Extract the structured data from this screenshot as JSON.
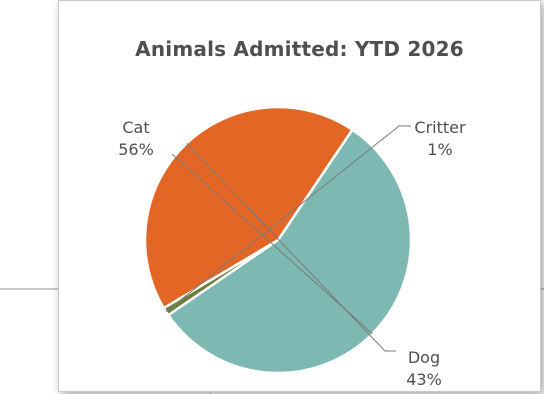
{
  "chart_data": {
    "type": "pie",
    "title": "Animals Admitted: YTD 2026",
    "slices": [
      {
        "label": "Cat",
        "percent_label": "56%",
        "value": 56,
        "color": "#7db8b3"
      },
      {
        "label": "Critter",
        "percent_label": "1%",
        "value": 1,
        "color": "#6b7d3a"
      },
      {
        "label": "Dog",
        "percent_label": "43%",
        "value": 43,
        "color": "#e36624"
      }
    ],
    "legend": "none",
    "data_labels": "outside with leader lines"
  }
}
